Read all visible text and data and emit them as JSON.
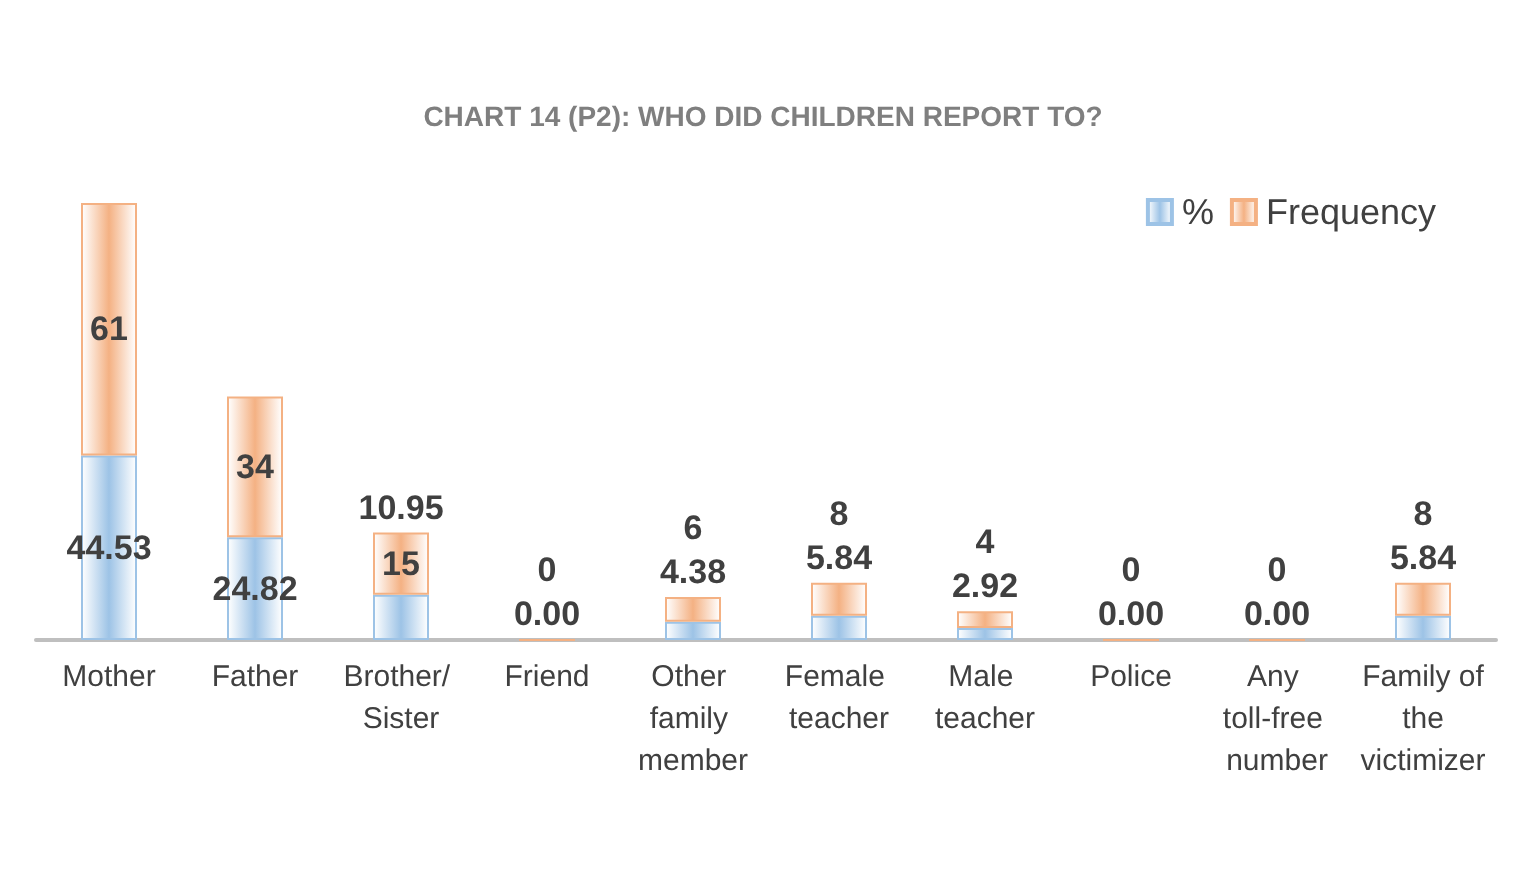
{
  "chart_data": {
    "type": "bar",
    "title": "CHART 14 (P2): WHO DID CHILDREN REPORT TO?",
    "stacked": true,
    "categories": [
      "Mother",
      "Father",
      "Brother/ Sister",
      "Friend",
      "Other family member",
      "Female teacher",
      "Male teacher",
      "Police",
      "Any toll-free number",
      "Family of the victimizer"
    ],
    "series": [
      {
        "name": "%",
        "color": "#9dc3e6",
        "values": [
          44.53,
          24.82,
          10.95,
          0,
          4.38,
          5.84,
          2.92,
          0,
          0,
          5.84
        ],
        "value_labels": [
          "44.53",
          "24.82",
          "10.95",
          "0.00",
          "4.38",
          "5.84",
          "2.92",
          "0.00",
          "0.00",
          "5.84"
        ]
      },
      {
        "name": "Frequency",
        "color": "#f4b183",
        "values": [
          61,
          34,
          15,
          0,
          6,
          8,
          4,
          0,
          0,
          8
        ],
        "value_labels": [
          "61",
          "34",
          "15",
          "0",
          "6",
          "8",
          "4",
          "0",
          "0",
          "8"
        ]
      }
    ],
    "legend": "top right"
  }
}
